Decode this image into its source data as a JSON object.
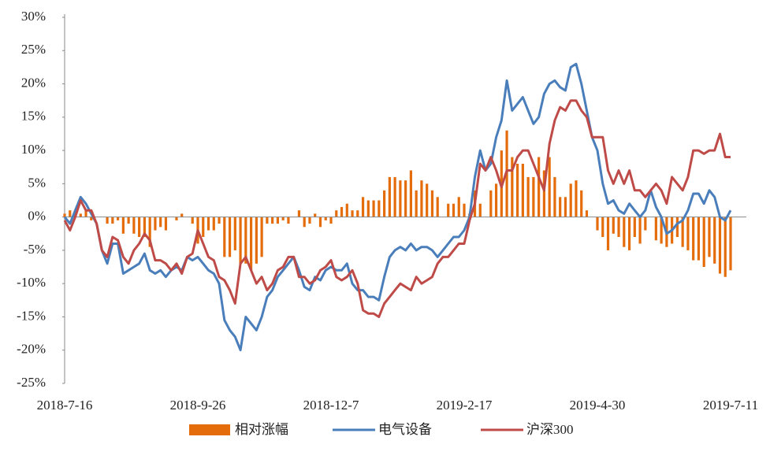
{
  "chart_data": {
    "type": "bar_line",
    "categories": [
      "2018-7-16",
      null,
      null,
      null,
      null,
      null,
      null,
      null,
      null,
      null,
      null,
      null,
      null,
      null,
      null,
      null,
      null,
      null,
      null,
      null,
      null,
      null,
      null,
      null,
      null,
      "2018-9-26",
      null,
      null,
      null,
      null,
      null,
      null,
      null,
      null,
      null,
      null,
      null,
      null,
      null,
      null,
      null,
      null,
      null,
      null,
      null,
      null,
      null,
      null,
      null,
      null,
      "2018-12-7",
      null,
      null,
      null,
      null,
      null,
      null,
      null,
      null,
      null,
      null,
      null,
      null,
      null,
      null,
      null,
      null,
      null,
      null,
      null,
      null,
      null,
      null,
      null,
      null,
      "2019-2-17",
      null,
      null,
      null,
      null,
      null,
      null,
      null,
      null,
      null,
      null,
      null,
      null,
      null,
      null,
      null,
      null,
      null,
      null,
      null,
      null,
      null,
      null,
      null,
      null,
      "2019-4-30",
      null,
      null,
      null,
      null,
      null,
      null,
      null,
      null,
      null,
      null,
      null,
      null,
      null,
      null,
      null,
      null,
      null,
      null,
      null,
      null,
      null,
      null,
      null,
      null,
      "2019-7-11"
    ],
    "series": [
      {
        "name": "相对涨幅",
        "color": "#e46c0a",
        "kind": "bar",
        "values": [
          0.5,
          1,
          1,
          0.5,
          1,
          -0.5,
          0,
          0,
          -1,
          -1,
          -0.5,
          -2.5,
          -1,
          -2.5,
          -3,
          -3,
          -4.5,
          -2,
          -1.5,
          -2,
          0,
          -0.5,
          0.5,
          0,
          -1,
          -4,
          -3,
          -2,
          -2,
          -1,
          -6,
          -6,
          -5,
          -7,
          -7,
          -8,
          -7,
          -6,
          -1,
          -1,
          -1,
          -0.5,
          -1,
          0,
          1,
          -1.5,
          -1,
          0.5,
          -1.5,
          -0.5,
          -1,
          1,
          1.5,
          2,
          1,
          1,
          3,
          2.5,
          2.5,
          2.5,
          4,
          6,
          6,
          5.5,
          5.5,
          7,
          4,
          5.5,
          5,
          4,
          3,
          0,
          2,
          2,
          3,
          2,
          0.5,
          4,
          2,
          0,
          4,
          5,
          10,
          13,
          9,
          8,
          8,
          6,
          6,
          9,
          7,
          9,
          6,
          3,
          3,
          5,
          5.5,
          4,
          1,
          0,
          -2,
          -3,
          -5,
          -2.5,
          -3,
          -4.5,
          -5,
          -3,
          -4,
          -2,
          0,
          -3.5,
          -4,
          -4.5,
          -4,
          -3,
          -4.5,
          -5,
          -6.5,
          -6.5,
          -7.5,
          -6,
          -7,
          -8.5,
          -9,
          -8
        ]
      },
      {
        "name": "电气设备",
        "color": "#4a7ebb",
        "kind": "line",
        "values": [
          0,
          -1,
          1,
          3,
          2,
          0.5,
          -1,
          -5,
          -7,
          -4,
          -4,
          -8.5,
          -8,
          -7.5,
          -7,
          -5.5,
          -8,
          -8.5,
          -8,
          -9,
          -8,
          -7.5,
          -8,
          -6,
          -6.5,
          -6,
          -7,
          -8,
          -8.5,
          -10,
          -15.5,
          -17,
          -18,
          -20,
          -15,
          -16,
          -17,
          -15,
          -12,
          -11,
          -9,
          -8,
          -7,
          -6,
          -8,
          -10.5,
          -11,
          -9,
          -9.5,
          -8,
          -7.5,
          -8,
          -8,
          -7,
          -10,
          -11,
          -11,
          -12,
          -12,
          -12.5,
          -9,
          -6,
          -5,
          -4.5,
          -5,
          -4,
          -5,
          -4.5,
          -4.5,
          -5,
          -6,
          -5,
          -4,
          -3,
          -3,
          -2,
          0,
          6,
          10,
          7,
          8,
          12,
          14.5,
          20.5,
          16,
          17,
          18,
          16,
          14,
          15,
          18.5,
          20,
          20.5,
          19.5,
          19,
          22.5,
          23,
          20,
          16,
          12,
          10,
          5,
          2,
          2.5,
          1,
          0.5,
          2,
          1,
          0,
          1,
          4,
          1.5,
          0,
          -2.5,
          -2,
          -1,
          -0.5,
          1,
          3.5,
          3.5,
          2,
          4,
          3,
          0,
          -0.5,
          1
        ]
      },
      {
        "name": "沪深300",
        "color": "#be4b48",
        "kind": "line",
        "values": [
          -0.5,
          -2,
          0,
          2.5,
          1,
          1,
          -1,
          -5,
          -6,
          -3,
          -3.5,
          -6,
          -7,
          -5,
          -4,
          -2.5,
          -3.5,
          -6.5,
          -6.5,
          -7,
          -8,
          -7,
          -8.5,
          -6,
          -5.5,
          -2,
          -4,
          -6,
          -6.5,
          -9,
          -9.5,
          -11,
          -13,
          -7,
          -6,
          -8,
          -10,
          -9,
          -11,
          -10,
          -8,
          -7.5,
          -6,
          -6,
          -9,
          -9,
          -10,
          -9.5,
          -8,
          -7.5,
          -6.5,
          -9,
          -9.5,
          -9,
          -8,
          -10,
          -14,
          -14.5,
          -14.5,
          -15,
          -13,
          -12,
          -11,
          -10,
          -10.5,
          -11,
          -9,
          -10,
          -9.5,
          -9,
          -7,
          -6,
          -6,
          -5,
          -4,
          -4,
          -0.5,
          2,
          8,
          7,
          9,
          7,
          4.5,
          7,
          7,
          9,
          10,
          10,
          8,
          6,
          4,
          11,
          14.5,
          16.5,
          16,
          17.5,
          17.5,
          16,
          15,
          12,
          12,
          12,
          7,
          5,
          7,
          5,
          7,
          4,
          4,
          3,
          4,
          5,
          4,
          2,
          6,
          5,
          4,
          6,
          10,
          10,
          9.5,
          10,
          10,
          12.5,
          9,
          9
        ]
      }
    ],
    "ylim": [
      -25,
      30
    ],
    "yticks": [
      {
        "value": -25,
        "label": "-25%"
      },
      {
        "value": -20,
        "label": "-20%"
      },
      {
        "value": -15,
        "label": "-15%"
      },
      {
        "value": -10,
        "label": "-10%"
      },
      {
        "value": -5,
        "label": "-5%"
      },
      {
        "value": 0,
        "label": "0%"
      },
      {
        "value": 5,
        "label": "5%"
      },
      {
        "value": 10,
        "label": "10%"
      },
      {
        "value": 15,
        "label": "15%"
      },
      {
        "value": 20,
        "label": "20%"
      },
      {
        "value": 25,
        "label": "25%"
      },
      {
        "value": 30,
        "label": "30%"
      }
    ],
    "grid": false,
    "legend": "bottom"
  }
}
